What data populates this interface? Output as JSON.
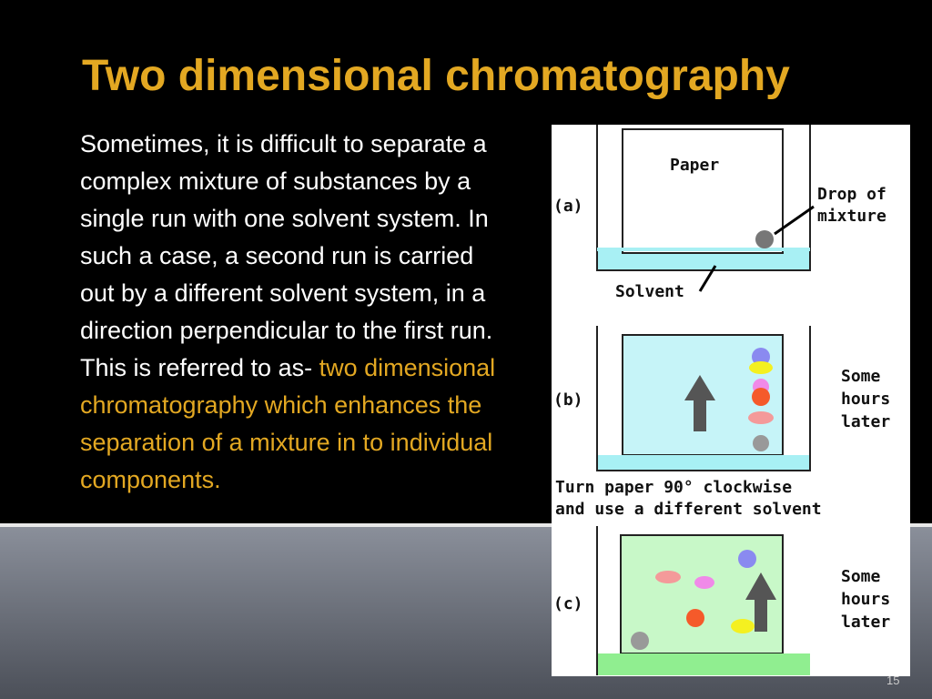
{
  "title": "Two dimensional chromatography",
  "body": {
    "text": "Sometimes, it is difficult to separate a complex mixture of substances by a single run with one solvent system. In such a case, a second run is carried out by a different solvent system, in a direction perpendicular to the first run. This is referred to as- ",
    "highlight": "two dimensional chromatography which enhances the separation of a mixture in to individual components."
  },
  "figure": {
    "panels": [
      {
        "label": "(a)",
        "paper": "Paper",
        "drop": [
          "Drop of",
          "mixture"
        ],
        "solvent": "Solvent"
      },
      {
        "label": "(b)",
        "note": [
          "Some",
          "hours",
          "later"
        ]
      },
      {
        "label": "(c)",
        "note": [
          "Some",
          "hours",
          "later"
        ]
      }
    ],
    "instruction": [
      "Turn paper 90° clockwise",
      "and use a different solvent"
    ]
  },
  "page_number": "15"
}
